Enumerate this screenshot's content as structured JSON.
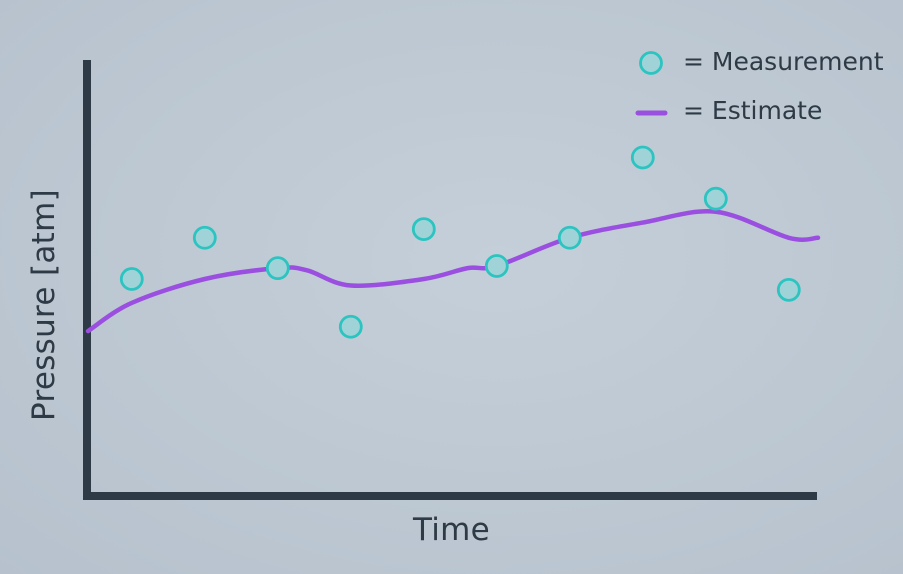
{
  "chart_data": {
    "type": "scatter",
    "xlabel": "Time",
    "ylabel": "Pressure [atm]",
    "colors": {
      "measurement": "#2bc4c0",
      "measurement_fill": "#9fd3d8",
      "estimate": "#9b4fe0",
      "axis": "#2e3a45"
    },
    "legend": {
      "placement": "top-right",
      "entries": [
        {
          "marker": "circle",
          "label": "= Measurement"
        },
        {
          "marker": "line",
          "label": "= Estimate"
        }
      ]
    },
    "xlim": [
      0,
      10
    ],
    "ylim": [
      0,
      10
    ],
    "grid": false,
    "series": [
      {
        "kind": "measurement",
        "points": [
          {
            "x": 0.6,
            "y": 5.0
          },
          {
            "x": 1.6,
            "y": 5.95
          },
          {
            "x": 2.6,
            "y": 5.25
          },
          {
            "x": 3.6,
            "y": 3.9
          },
          {
            "x": 4.6,
            "y": 6.15
          },
          {
            "x": 5.6,
            "y": 5.3
          },
          {
            "x": 6.6,
            "y": 5.95
          },
          {
            "x": 7.6,
            "y": 7.8
          },
          {
            "x": 8.6,
            "y": 6.85
          },
          {
            "x": 9.6,
            "y": 4.75
          }
        ]
      },
      {
        "kind": "estimate",
        "points": [
          {
            "x": 0.0,
            "y": 3.8
          },
          {
            "x": 0.6,
            "y": 4.45
          },
          {
            "x": 1.6,
            "y": 5.0
          },
          {
            "x": 2.6,
            "y": 5.25
          },
          {
            "x": 3.0,
            "y": 5.2
          },
          {
            "x": 3.6,
            "y": 4.85
          },
          {
            "x": 4.6,
            "y": 5.0
          },
          {
            "x": 5.2,
            "y": 5.25
          },
          {
            "x": 5.6,
            "y": 5.3
          },
          {
            "x": 6.6,
            "y": 5.95
          },
          {
            "x": 7.6,
            "y": 6.3
          },
          {
            "x": 8.6,
            "y": 6.55
          },
          {
            "x": 9.6,
            "y": 5.95
          },
          {
            "x": 10.0,
            "y": 5.95
          }
        ]
      }
    ]
  }
}
